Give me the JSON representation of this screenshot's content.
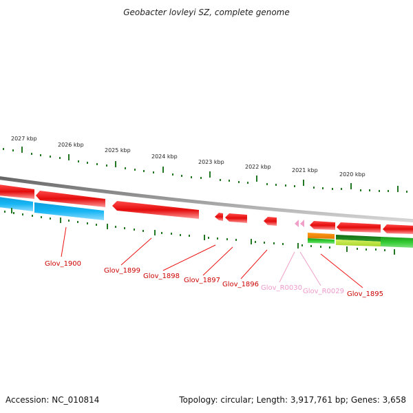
{
  "title": "Geobacter lovleyi SZ, complete genome",
  "footer": {
    "accession": "Accession: NC_010814",
    "topology": "Topology: circular; Length: 3,917,761 bp; Genes: 3,658"
  },
  "colors": {
    "cds": "#ee1111",
    "rna": "#f0a0c8",
    "blue": "#11aaee",
    "tick": "#227722",
    "backbone": "#888888"
  },
  "ticks": [
    {
      "label": "2027 kbp"
    },
    {
      "label": "2026 kbp"
    },
    {
      "label": "2025 kbp"
    },
    {
      "label": "2024 kbp"
    },
    {
      "label": "2023 kbp"
    },
    {
      "label": "2022 kbp"
    },
    {
      "label": "2021 kbp"
    },
    {
      "label": "2020 kbp"
    }
  ],
  "genes": [
    {
      "label": "Glov_1900",
      "type": "cds"
    },
    {
      "label": "Glov_1899",
      "type": "cds"
    },
    {
      "label": "Glov_1898",
      "type": "cds"
    },
    {
      "label": "Glov_1897",
      "type": "cds"
    },
    {
      "label": "Glov_1896",
      "type": "cds"
    },
    {
      "label": "Glov_R0030",
      "type": "rna"
    },
    {
      "label": "Glov_R0029",
      "type": "rna"
    },
    {
      "label": "Glov_1895",
      "type": "cds"
    }
  ]
}
